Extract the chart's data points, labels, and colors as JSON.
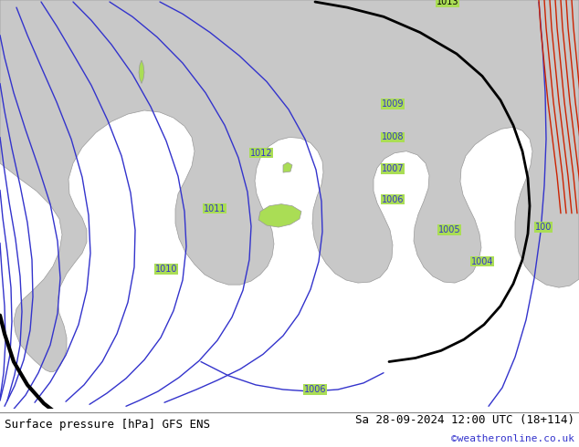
{
  "title_left": "Surface pressure [hPa] GFS ENS",
  "title_right": "Sa 28-09-2024 12:00 UTC (18+114)",
  "credit": "©weatheronline.co.uk",
  "bg_color": "#aadd55",
  "land_color": "#c8c8c8",
  "land_edge_color": "#999999",
  "sea_color": "#c8c8c8",
  "blue": "#3333cc",
  "black": "#000000",
  "red": "#cc2200",
  "lw_blue": 1.0,
  "lw_black": 1.8,
  "lw_red": 1.0,
  "label_fs": 7,
  "footer_fs": 9,
  "figsize": [
    6.34,
    4.9
  ],
  "dpi": 100
}
